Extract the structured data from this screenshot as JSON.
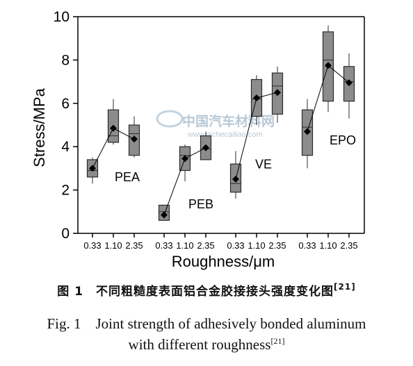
{
  "chart_data": {
    "type": "box",
    "xlabel": "Roughness/μm",
    "ylabel": "Stress/MPa",
    "ylim": [
      0,
      10
    ],
    "yticks": [
      0,
      2,
      4,
      6,
      8,
      10
    ],
    "categories": [
      "0.33",
      "1.10",
      "2.35"
    ],
    "grid": false,
    "groups": [
      {
        "name": "PEA",
        "boxes": [
          {
            "x": "0.33",
            "min": 2.3,
            "q1": 2.6,
            "median": 2.9,
            "q3": 3.4,
            "max": 3.5,
            "mean": 3.0
          },
          {
            "x": "1.10",
            "min": 4.1,
            "q1": 4.2,
            "median": 4.5,
            "q3": 5.7,
            "max": 6.2,
            "mean": 4.85
          },
          {
            "x": "2.35",
            "min": 3.5,
            "q1": 3.6,
            "median": 4.6,
            "q3": 5.0,
            "max": 5.4,
            "mean": 4.35
          }
        ]
      },
      {
        "name": "PEB",
        "boxes": [
          {
            "x": "0.33",
            "min": 0.6,
            "q1": 0.6,
            "median": 1.0,
            "q3": 1.3,
            "max": 1.3,
            "mean": 0.85
          },
          {
            "x": "1.10",
            "min": 2.4,
            "q1": 2.9,
            "median": 3.6,
            "q3": 4.0,
            "max": 4.1,
            "mean": 3.45
          },
          {
            "x": "2.35",
            "min": 3.4,
            "q1": 3.4,
            "median": 3.9,
            "q3": 4.5,
            "max": 4.7,
            "mean": 3.95
          }
        ]
      },
      {
        "name": "VE",
        "boxes": [
          {
            "x": "0.33",
            "min": 1.6,
            "q1": 1.9,
            "median": 2.3,
            "q3": 3.2,
            "max": 3.8,
            "mean": 2.5
          },
          {
            "x": "1.10",
            "min": 5.0,
            "q1": 5.4,
            "median": 6.2,
            "q3": 7.1,
            "max": 7.3,
            "mean": 6.25
          },
          {
            "x": "2.35",
            "min": 5.1,
            "q1": 5.5,
            "median": 6.8,
            "q3": 7.4,
            "max": 7.7,
            "mean": 6.5
          }
        ]
      },
      {
        "name": "EPO",
        "boxes": [
          {
            "x": "0.33",
            "min": 3.0,
            "q1": 3.6,
            "median": 4.9,
            "q3": 5.7,
            "max": 6.2,
            "mean": 4.7
          },
          {
            "x": "1.10",
            "min": 5.6,
            "q1": 6.1,
            "median": 8.0,
            "q3": 9.3,
            "max": 9.6,
            "mean": 7.75
          },
          {
            "x": "2.35",
            "min": 5.3,
            "q1": 6.1,
            "median": 7.0,
            "q3": 7.7,
            "max": 8.3,
            "mean": 6.95
          }
        ]
      }
    ]
  },
  "watermark": {
    "cn": "中国汽车材料网",
    "url": "www.qichecailiao.com"
  },
  "caption": {
    "cn": "图 1　不同粗糙度表面铝合金胶接接头强度变化图",
    "cn_ref": "[21]",
    "en_line1": "Fig. 1　Joint strength of adhesively bonded aluminum",
    "en_line2": "with different roughness",
    "en_ref": "[21]"
  },
  "colors": {
    "box_fill": "#8c8c8c",
    "box_stroke": "#2b2b2b",
    "mean_marker": "#000000",
    "axis": "#000000"
  }
}
